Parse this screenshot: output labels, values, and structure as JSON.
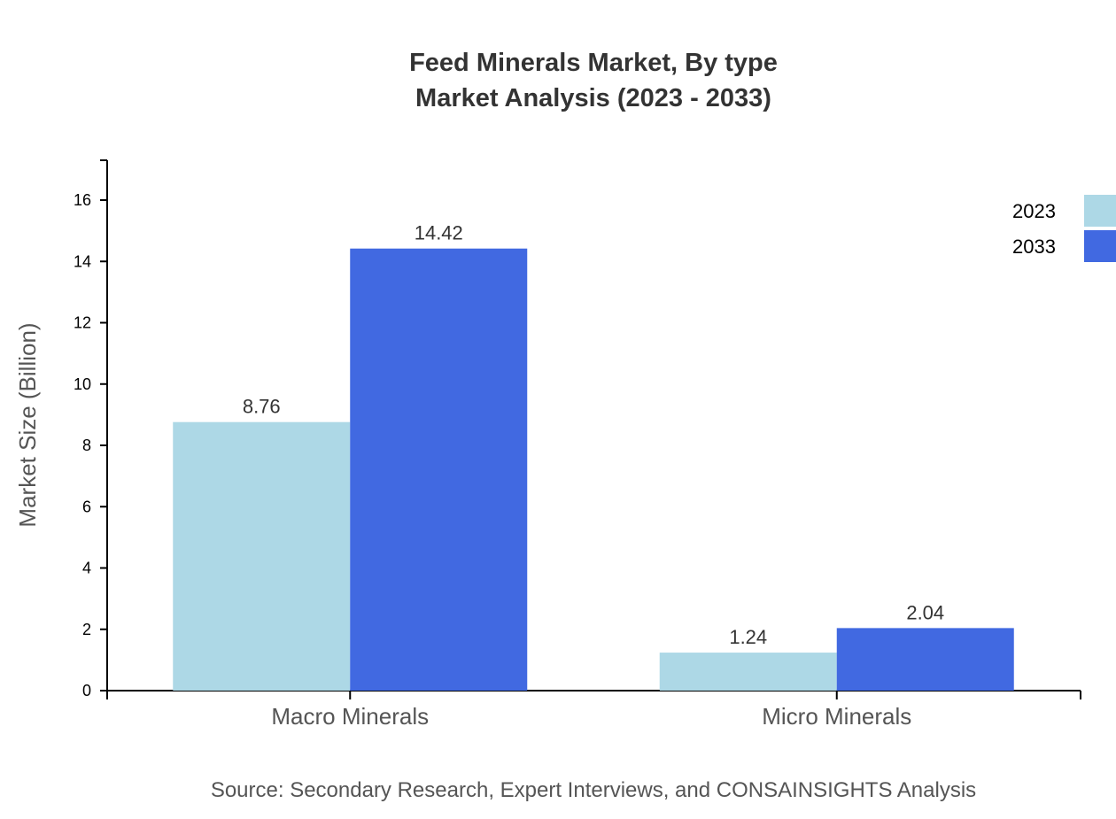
{
  "chart_data": {
    "type": "bar",
    "title": "Feed Minerals Market, By type",
    "subtitle": "Market Analysis (2023 - 2033)",
    "xlabel": "",
    "ylabel": "Market Size (Billion)",
    "categories": [
      "Macro Minerals",
      "Micro Minerals"
    ],
    "series": [
      {
        "name": "2023",
        "values": [
          8.76,
          1.24
        ],
        "color": "#ADD8E6"
      },
      {
        "name": "2033",
        "values": [
          14.42,
          2.04
        ],
        "color": "#4169E1"
      }
    ],
    "ylim": [
      0,
      17.3
    ],
    "yticks": [
      0,
      2,
      4,
      6,
      8,
      10,
      12,
      14,
      16
    ],
    "grid": false,
    "legend": "top-right",
    "source": "Source: Secondary Research, Expert Interviews, and CONSAINSIGHTS Analysis"
  }
}
